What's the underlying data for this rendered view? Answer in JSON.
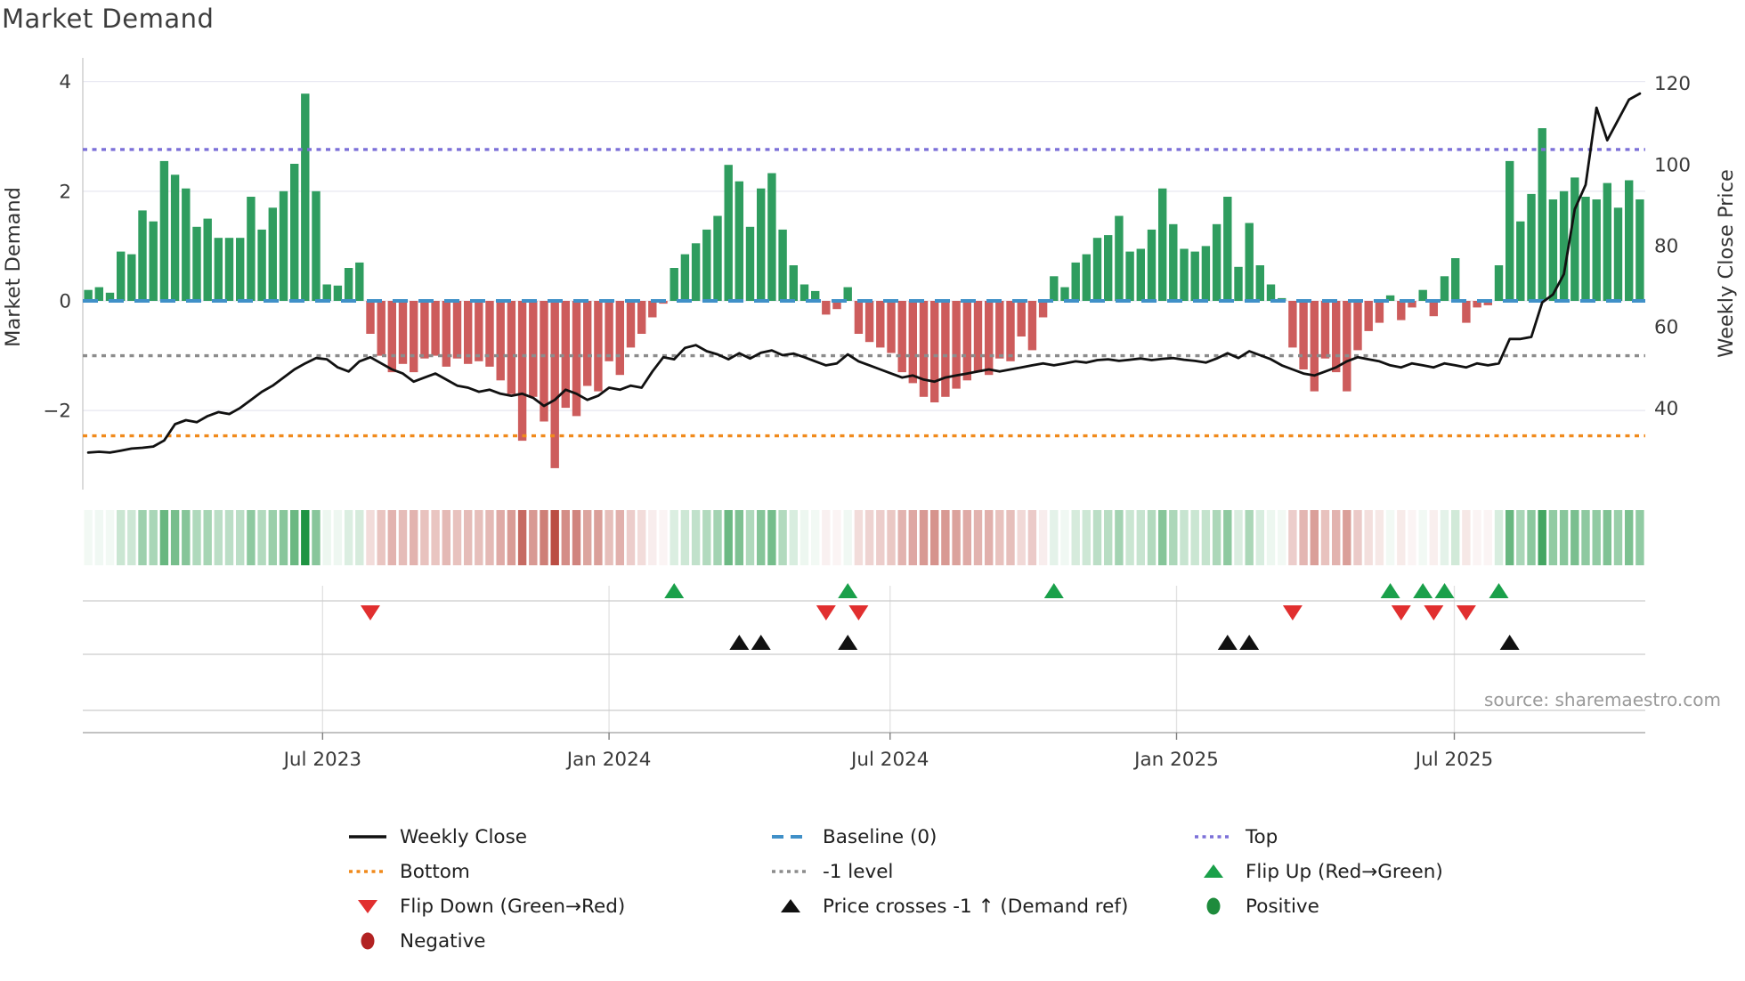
{
  "title": "Market Demand",
  "source": "source: sharemaestro.com",
  "axes": {
    "left_label": "Market Demand",
    "right_label": "Weekly Close Price",
    "left_ticks": [
      {
        "value": 4,
        "label": "4"
      },
      {
        "value": 2,
        "label": "2"
      },
      {
        "value": 0,
        "label": "0"
      },
      {
        "value": -2,
        "label": "−2"
      }
    ],
    "right_ticks": [
      {
        "value": 120,
        "label": "120"
      },
      {
        "value": 100,
        "label": "100"
      },
      {
        "value": 80,
        "label": "80"
      },
      {
        "value": 60,
        "label": "60"
      },
      {
        "value": 40,
        "label": "40"
      }
    ],
    "x_ticks": [
      {
        "week": 21.6,
        "label": "Jul 2023"
      },
      {
        "week": 48.0,
        "label": "Jan 2024"
      },
      {
        "week": 73.9,
        "label": "Jul 2024"
      },
      {
        "week": 100.3,
        "label": "Jan 2025"
      },
      {
        "week": 125.9,
        "label": "Jul 2025"
      }
    ]
  },
  "colors": {
    "bar_positive": "#2f9d5f",
    "bar_negative": "#cd5c5c",
    "price_line": "#111111",
    "baseline": "#4090c8",
    "top_line": "#7c70d8",
    "bottom_line": "#f08a1c",
    "minus1_line": "#8c8c8c",
    "flip_up": "#1aa04a",
    "flip_down": "#e12f2f",
    "price_cross": "#111111",
    "positive_dot": "#1e8b3c",
    "negative_dot": "#b22222",
    "grid": "#e9e9f2",
    "panel_grid": "#cccccc",
    "panel_vgrid": "#e2e2e2",
    "spine": "#c8c8c8",
    "bottom_spine": "#aeaeae",
    "axis_text": "#3a3a3a",
    "heat_green_max": "#1f9442",
    "heat_red_max": "#bb4d43"
  },
  "legend": {
    "items": [
      {
        "label": "Weekly Close",
        "swatch": "solid-line",
        "color": "#111111"
      },
      {
        "label": "Baseline (0)",
        "swatch": "dashed-line",
        "color": "#4090c8"
      },
      {
        "label": "Top",
        "swatch": "dotted-line",
        "color": "#7c70d8"
      },
      {
        "label": "Bottom",
        "swatch": "dotted-line",
        "color": "#f08a1c"
      },
      {
        "label": "-1 level",
        "swatch": "dotted-line",
        "color": "#8c8c8c"
      },
      {
        "label": "Flip Up (Red→Green)",
        "swatch": "triangle-up",
        "color": "#1aa04a"
      },
      {
        "label": "Flip Down (Green→Red)",
        "swatch": "triangle-down",
        "color": "#e12f2f"
      },
      {
        "label": "Price crosses -1 ↑ (Demand ref)",
        "swatch": "triangle-up",
        "color": "#111111"
      },
      {
        "label": "Positive",
        "swatch": "circle",
        "color": "#1e8b3c"
      },
      {
        "label": "Negative",
        "swatch": "circle",
        "color": "#b22222"
      }
    ]
  },
  "chart_data": {
    "type": "bar+line",
    "x_unit": "week",
    "n_weeks": 144,
    "left_ylim": [
      -3.44,
      4.43
    ],
    "right_ylim": [
      19.9,
      126.3
    ],
    "grid": "horizontal-left-axis",
    "legend_position": "below",
    "demand": [
      0.2,
      0.25,
      0.15,
      0.9,
      0.85,
      1.65,
      1.45,
      2.55,
      2.3,
      2.05,
      1.35,
      1.5,
      1.15,
      1.15,
      1.15,
      1.9,
      1.3,
      1.7,
      2.0,
      2.5,
      3.78,
      2.0,
      0.3,
      0.28,
      0.6,
      0.7,
      -0.6,
      -1.0,
      -1.3,
      -1.15,
      -1.3,
      -1.05,
      -1.0,
      -1.2,
      -1.05,
      -1.15,
      -1.1,
      -1.2,
      -1.45,
      -1.7,
      -2.55,
      -1.75,
      -2.2,
      -3.05,
      -1.95,
      -2.1,
      -1.55,
      -1.65,
      -1.1,
      -1.35,
      -0.85,
      -0.6,
      -0.3,
      -0.05,
      0.6,
      0.85,
      1.05,
      1.3,
      1.55,
      2.48,
      2.18,
      1.35,
      2.05,
      2.33,
      1.3,
      0.65,
      0.3,
      0.18,
      -0.25,
      -0.15,
      0.25,
      -0.6,
      -0.75,
      -0.85,
      -0.95,
      -1.3,
      -1.5,
      -1.75,
      -1.85,
      -1.75,
      -1.6,
      -1.45,
      -1.3,
      -1.35,
      -1.05,
      -1.1,
      -0.65,
      -0.9,
      -0.3,
      0.45,
      0.25,
      0.7,
      0.85,
      1.15,
      1.2,
      1.55,
      0.9,
      0.95,
      1.3,
      2.05,
      1.4,
      0.95,
      0.9,
      1.0,
      1.4,
      1.9,
      0.62,
      1.42,
      0.65,
      0.3,
      0.05,
      -0.85,
      -1.25,
      -1.65,
      -1.05,
      -1.3,
      -1.65,
      -0.9,
      -0.55,
      -0.4,
      0.1,
      -0.35,
      -0.12,
      0.2,
      -0.28,
      0.45,
      0.78,
      -0.4,
      -0.12,
      -0.08,
      0.65,
      2.55,
      1.45,
      1.95,
      3.15,
      1.85,
      2.0,
      2.25,
      1.9,
      1.85,
      2.15,
      1.7,
      2.2,
      1.85
    ],
    "price": [
      29.0,
      29.2,
      29.0,
      29.5,
      30.0,
      30.2,
      30.5,
      32.0,
      36.0,
      37.0,
      36.5,
      38.0,
      39.0,
      38.5,
      40.0,
      42.0,
      44.0,
      45.5,
      47.5,
      49.5,
      51.0,
      52.3,
      52.0,
      50.0,
      49.0,
      51.5,
      52.5,
      51.0,
      49.5,
      48.5,
      46.5,
      47.5,
      48.5,
      47.0,
      45.5,
      45.0,
      44.0,
      44.5,
      43.5,
      43.0,
      43.5,
      42.5,
      40.5,
      42.0,
      44.5,
      43.5,
      42.0,
      43.0,
      45.0,
      44.5,
      45.5,
      45.0,
      49.0,
      52.5,
      52.0,
      54.8,
      55.5,
      54.0,
      53.2,
      52.0,
      53.5,
      52.2,
      53.6,
      54.2,
      53.0,
      53.4,
      52.5,
      51.5,
      50.5,
      51.0,
      53.2,
      51.5,
      50.5,
      49.5,
      48.5,
      47.5,
      48.0,
      47.0,
      46.5,
      47.5,
      48.0,
      48.5,
      49.0,
      49.5,
      49.0,
      49.5,
      50.0,
      50.5,
      51.0,
      50.5,
      51.0,
      51.5,
      51.2,
      51.8,
      52.0,
      51.6,
      51.9,
      52.2,
      51.8,
      52.1,
      52.3,
      51.9,
      51.6,
      51.2,
      52.2,
      53.5,
      52.3,
      54.0,
      53.0,
      52.0,
      50.5,
      49.5,
      48.5,
      48.0,
      49.0,
      50.0,
      51.5,
      52.5,
      52.0,
      51.5,
      50.5,
      50.0,
      51.0,
      50.5,
      50.0,
      51.0,
      50.5,
      50.0,
      51.0,
      50.5,
      51.0,
      57.0,
      57.0,
      57.5,
      66.0,
      68.0,
      73.0,
      89.0,
      95.0,
      114.0,
      106.0,
      111.0,
      116.0,
      117.5
    ],
    "reference_lines": [
      {
        "name": "Baseline (0)",
        "axis": "left",
        "value": 0,
        "style": "dashed",
        "color": "#4090c8"
      },
      {
        "name": "Top",
        "axis": "left",
        "value": 2.76,
        "style": "dotted",
        "color": "#7c70d8"
      },
      {
        "name": "-1 level",
        "axis": "left",
        "value": -1.0,
        "style": "dotted",
        "color": "#8c8c8c"
      },
      {
        "name": "Bottom",
        "axis": "left",
        "value": -2.46,
        "style": "dotted",
        "color": "#f08a1c"
      }
    ],
    "markers": {
      "flip_up_weeks": [
        54,
        70,
        89,
        120,
        123,
        125,
        130
      ],
      "flip_down_weeks": [
        26,
        68,
        71,
        111,
        121,
        124,
        127
      ],
      "price_cross_weeks": [
        60,
        62,
        70,
        105,
        107,
        131
      ]
    },
    "heat_strip": {
      "derived_from": "demand",
      "green_max_at": 3.78,
      "red_max_at": 3.05
    }
  }
}
